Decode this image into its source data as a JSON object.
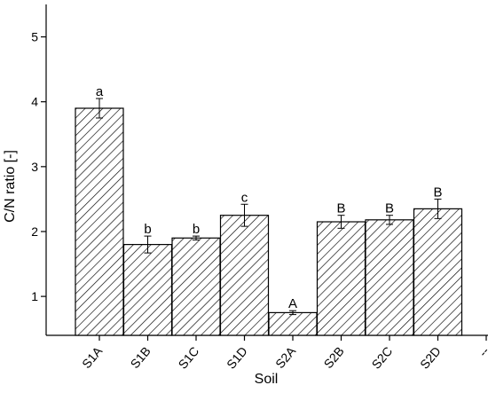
{
  "chart_data": {
    "type": "bar",
    "categories": [
      "S1A",
      "S1B",
      "S1C",
      "S1D",
      "S2A",
      "S2B",
      "S2C",
      "S2D",
      "--"
    ],
    "values": [
      3.9,
      1.8,
      1.9,
      2.25,
      0.75,
      2.15,
      2.18,
      2.35,
      null
    ],
    "errors": [
      0.15,
      0.13,
      0.03,
      0.17,
      0.03,
      0.1,
      0.07,
      0.15,
      null
    ],
    "annotations": [
      "a",
      "b",
      "b",
      "c",
      "A",
      "B",
      "B",
      "B",
      null
    ],
    "ylim": [
      0.4,
      5.5
    ],
    "yticks": [
      1,
      2,
      3,
      4,
      5
    ],
    "xlabel": "Soil",
    "ylabel": "C/N ratio [-]",
    "color": "#000000",
    "pattern": "hatch",
    "grid": false
  }
}
